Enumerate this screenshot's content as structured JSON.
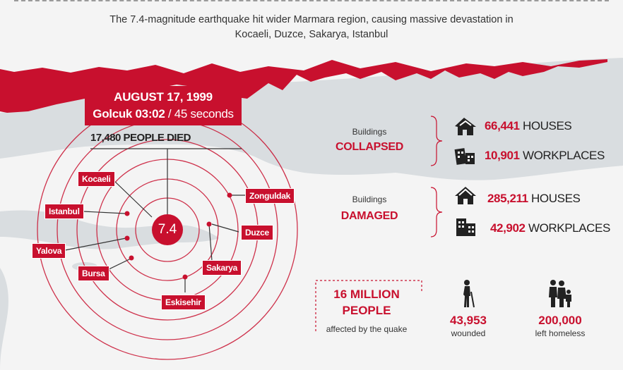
{
  "header": {
    "subtitle_line1": "The 7.4-magnitude earthquake hit wider Marmara region, causing massive devastation in",
    "subtitle_line2": "Kocaeli, Duzce, Sakarya, Istanbul"
  },
  "quake": {
    "date": "AUGUST 17, 1999",
    "place_time": "Golcuk  03:02",
    "duration": " / 45 seconds",
    "deaths": "17,480 PEOPLE DIED",
    "magnitude": "7.4"
  },
  "cities": [
    "Kocaeli",
    "Istanbul",
    "Yalova",
    "Bursa",
    "Eskisehir",
    "Sakarya",
    "Duzce",
    "Zonguldak"
  ],
  "collapsed": {
    "small": "Buildings",
    "big": "COLLAPSED",
    "houses_num": "66,441",
    "houses_lbl": "HOUSES",
    "work_num": "10,901",
    "work_lbl": "WORKPLACES"
  },
  "damaged": {
    "small": "Buildings",
    "big": "DAMAGED",
    "houses_num": "285,211",
    "houses_lbl": "HOUSES",
    "work_num": "42,902",
    "work_lbl": "WORKPLACES"
  },
  "affected": {
    "line1": "16 MILLION",
    "line2": "PEOPLE",
    "sub": "affected by the quake",
    "wounded_num": "43,953",
    "wounded_lbl": "wounded",
    "homeless_num": "200,000",
    "homeless_lbl": "left homeless"
  },
  "colors": {
    "accent": "#c8102e",
    "sea": "#d8dde0",
    "land": "#f4f4f4"
  },
  "icons": [
    "collapsed-house-icon",
    "collapsed-building-icon",
    "house-icon",
    "building-icon",
    "wounded-person-icon",
    "family-icon"
  ]
}
